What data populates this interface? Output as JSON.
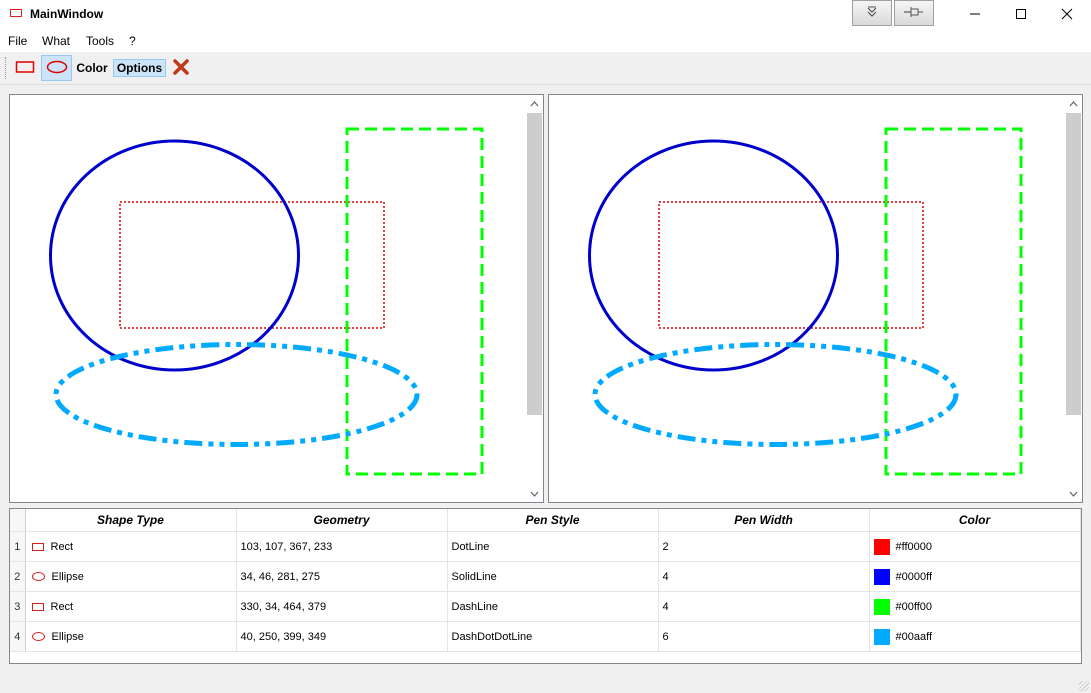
{
  "window": {
    "title": "MainWindow",
    "extra_buttons": [
      "dock-icon",
      "pin-icon"
    ],
    "controls": [
      "minimize",
      "maximize",
      "close"
    ]
  },
  "menu": [
    "File",
    "What",
    "Tools",
    "?"
  ],
  "toolbar": {
    "color_label": "Color",
    "options_label": "Options",
    "active_tool": "ellipse"
  },
  "shapes": [
    {
      "row": "1",
      "type": "Rect",
      "geometry": "103, 107, 367, 233",
      "pen_style": "DotLine",
      "pen_width": "2",
      "color": "#ff0000"
    },
    {
      "row": "2",
      "type": "Ellipse",
      "geometry": "34, 46, 281, 275",
      "pen_style": "SolidLine",
      "pen_width": "4",
      "color": "#0000ff"
    },
    {
      "row": "3",
      "type": "Rect",
      "geometry": "330, 34, 464, 379",
      "pen_style": "DashLine",
      "pen_width": "4",
      "color": "#00ff00"
    },
    {
      "row": "4",
      "type": "Ellipse",
      "geometry": "40, 250, 399, 349",
      "pen_style": "DashDotDotLine",
      "pen_width": "6",
      "color": "#00aaff"
    }
  ],
  "table": {
    "headers": [
      "Shape Type",
      "Geometry",
      "Pen Style",
      "Pen Width",
      "Color"
    ]
  }
}
